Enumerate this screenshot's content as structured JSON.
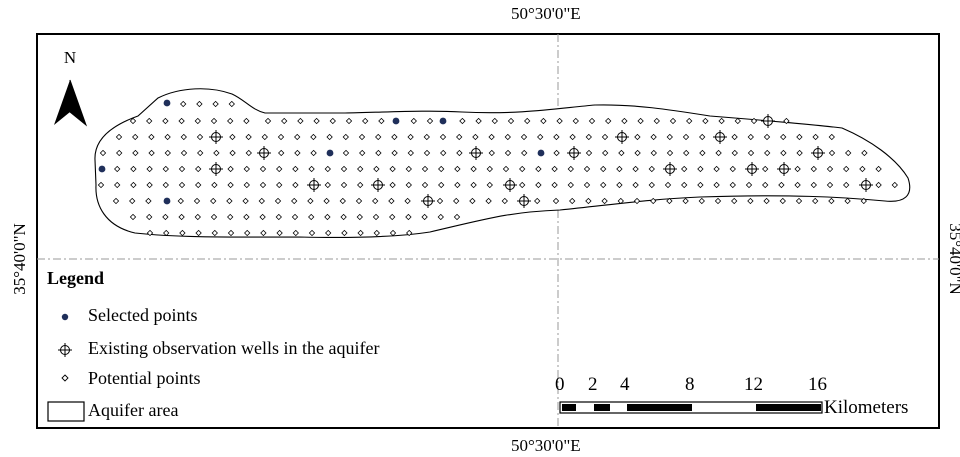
{
  "map": {
    "coords": {
      "top_lon": "50°30'0\"E",
      "bottom_lon": "50°30'0\"E",
      "left_lat": "35°40'0\"N",
      "right_lat": "35°40'0\"N"
    },
    "north_arrow": {
      "label": "N"
    },
    "legend": {
      "title": "Legend",
      "items": [
        {
          "label": "Selected points",
          "symbol": "selected-point-icon"
        },
        {
          "label": "Existing observation wells in the aquifer",
          "symbol": "observation-well-icon"
        },
        {
          "label": "Potential points",
          "symbol": "potential-point-icon"
        },
        {
          "label": "Aquifer area",
          "symbol": "aquifer-area-icon"
        }
      ]
    },
    "scale_bar": {
      "ticks": [
        "0",
        "2",
        "4",
        "8",
        "12",
        "16"
      ],
      "unit": "Kilometers"
    },
    "colors": {
      "selected": "#1f2f5a",
      "frame": "#000000",
      "graticule": "#9a9a9a"
    }
  }
}
